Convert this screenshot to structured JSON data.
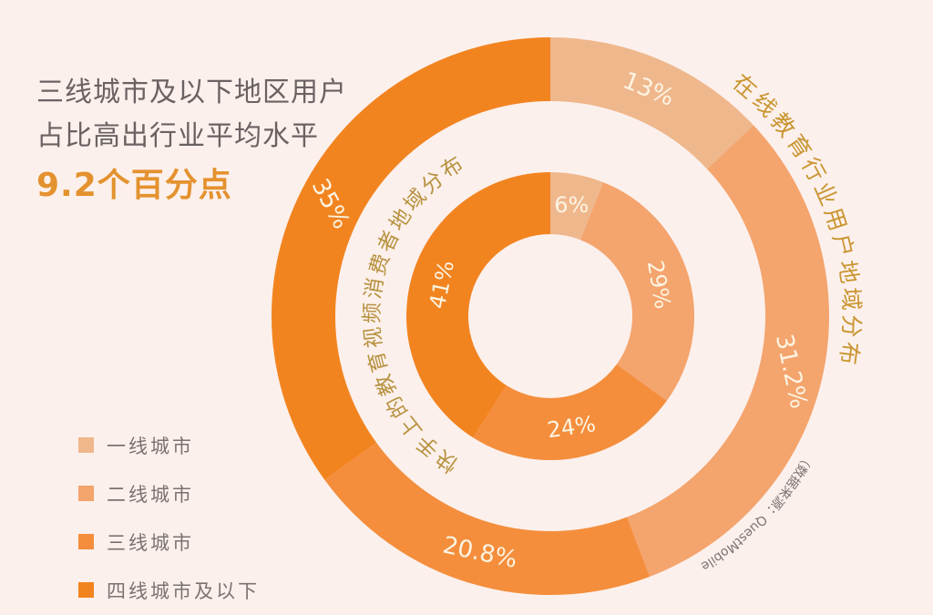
{
  "headline": {
    "line1": "三线城市及以下地区用户",
    "line2": "占比高出行业平均水平",
    "highlight": "9.2个百分点"
  },
  "source_note": "（数据来源：QuestMobile）",
  "chart_data": {
    "type": "donut",
    "categories": [
      "一线城市",
      "二线城市",
      "三线城市",
      "四线城市及以下"
    ],
    "colors": [
      "#efb78c",
      "#f4a46d",
      "#f48e3c",
      "#f28420"
    ],
    "series": [
      {
        "name": "在线教育行业用户地域分布",
        "ring": "outer",
        "values": [
          13,
          31.2,
          20.8,
          35
        ],
        "labels": [
          "13%",
          "31.2%",
          "20.8%",
          "35%"
        ]
      },
      {
        "name": "快手上的教育视频消费者地域分布",
        "ring": "inner",
        "values": [
          6,
          29,
          24,
          41
        ],
        "labels": [
          "6%",
          "29%",
          "24%",
          "41%"
        ]
      }
    ],
    "legend_placement": "bottom-left"
  }
}
